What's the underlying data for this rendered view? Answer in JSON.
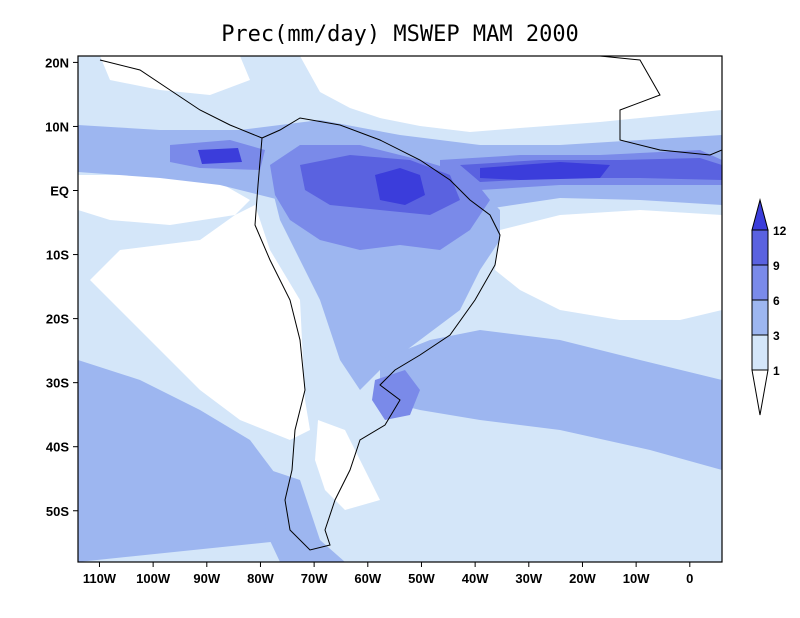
{
  "title": "Prec(mm/day) MSWEP MAM 2000",
  "colors": {
    "lt1": "#ffffff",
    "c1_3": "#d4e6f9",
    "c3_6": "#9db6f0",
    "c6_9": "#7a8ae9",
    "c9_12": "#5a62e0",
    "gt12": "#3b3ddb",
    "coast": "#000000"
  },
  "map": {
    "lon_range": [
      -114,
      6
    ],
    "lat_range": [
      -58,
      21
    ],
    "x_ticks": [
      {
        "lon": -110,
        "label": "110W"
      },
      {
        "lon": -100,
        "label": "100W"
      },
      {
        "lon": -90,
        "label": "90W"
      },
      {
        "lon": -80,
        "label": "80W"
      },
      {
        "lon": -70,
        "label": "70W"
      },
      {
        "lon": -60,
        "label": "60W"
      },
      {
        "lon": -50,
        "label": "50W"
      },
      {
        "lon": -40,
        "label": "40W"
      },
      {
        "lon": -30,
        "label": "30W"
      },
      {
        "lon": -20,
        "label": "20W"
      },
      {
        "lon": -10,
        "label": "10W"
      },
      {
        "lon": 0,
        "label": "0"
      }
    ],
    "y_ticks": [
      {
        "lat": 20,
        "label": "20N"
      },
      {
        "lat": 10,
        "label": "10N"
      },
      {
        "lat": 0,
        "label": "EQ"
      },
      {
        "lat": -10,
        "label": "10S"
      },
      {
        "lat": -20,
        "label": "20S"
      },
      {
        "lat": -30,
        "label": "30S"
      },
      {
        "lat": -40,
        "label": "40S"
      },
      {
        "lat": -50,
        "label": "50S"
      }
    ]
  },
  "colorbar": {
    "levels": [
      "1",
      "3",
      "6",
      "9",
      "12"
    ]
  }
}
